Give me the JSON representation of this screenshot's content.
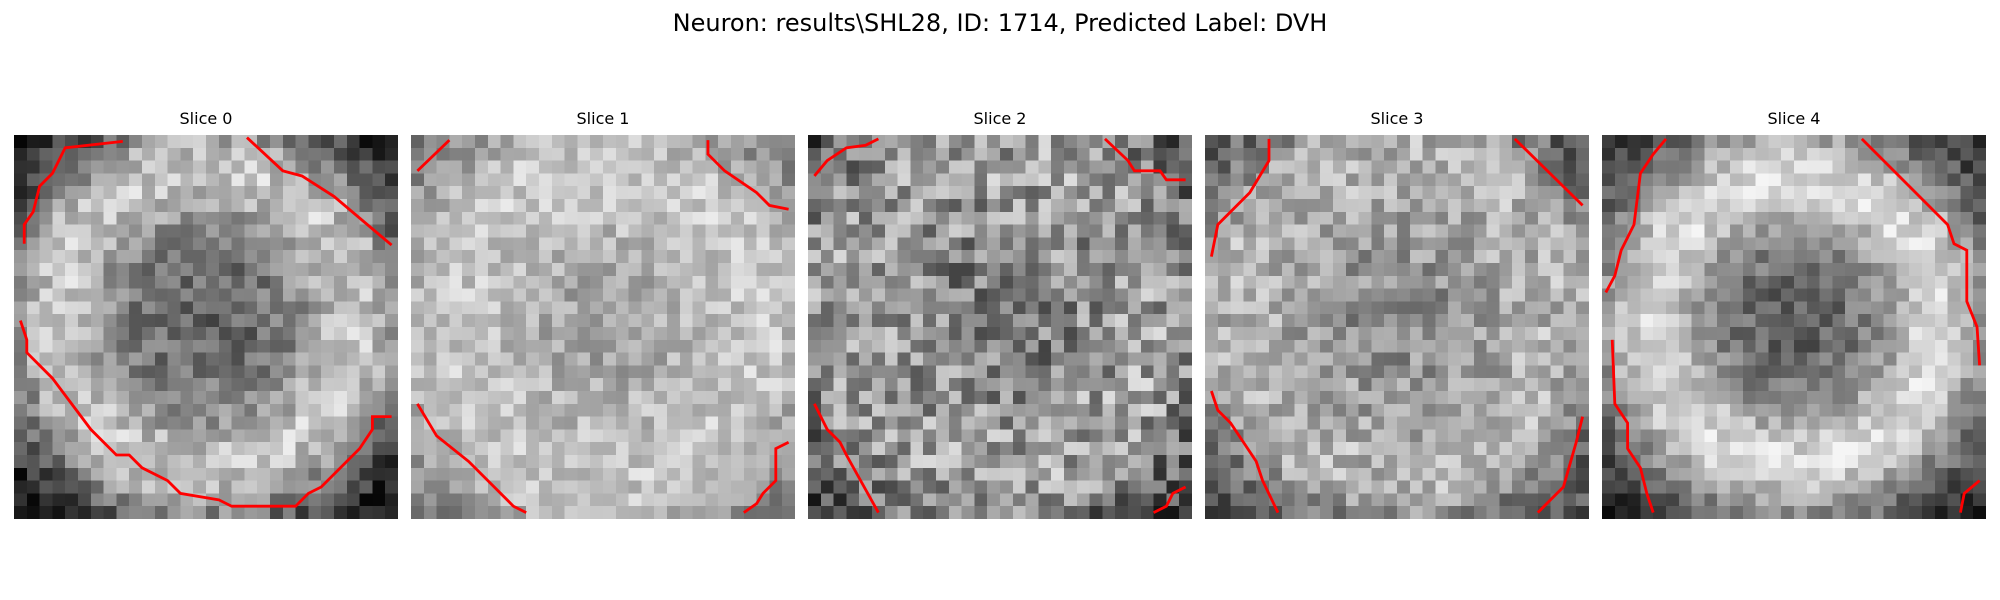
{
  "figure": {
    "title": "Neuron: results\\SHL28, ID: 1714, Predicted Label: DVH"
  },
  "contour_color": "#ff0000",
  "panels": [
    {
      "title": "Slice 0"
    },
    {
      "title": "Slice 1"
    },
    {
      "title": "Slice 2"
    },
    {
      "title": "Slice 3"
    },
    {
      "title": "Slice 4"
    }
  ]
}
